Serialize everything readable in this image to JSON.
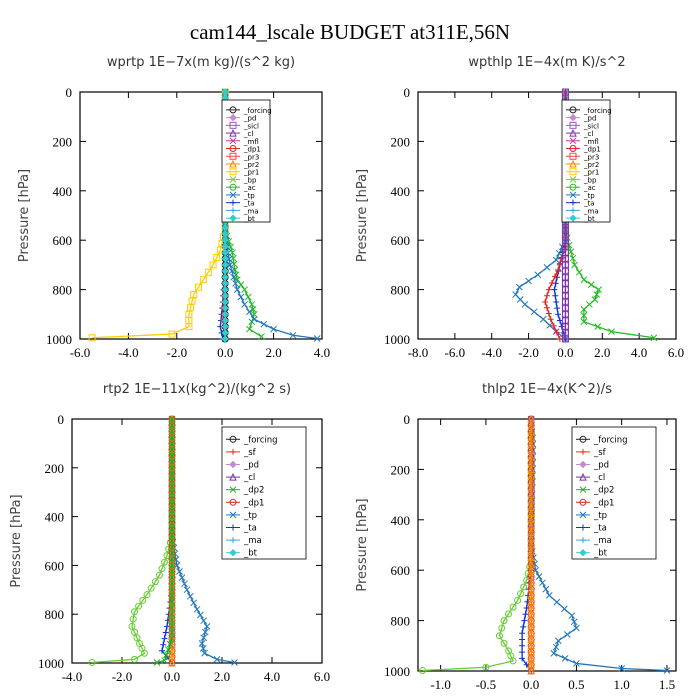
{
  "title": "cam144_lscale  BUDGET at311E,56N",
  "chart_data": [
    {
      "type": "line",
      "id": "wprtp",
      "title": "wprtp   1E−7x(m kg)/(s^2 kg)",
      "ylabel": "Pressure  [hPa]",
      "xlim": [
        -6,
        4
      ],
      "ylim": [
        1000,
        0
      ],
      "xticks": [
        "-6.0",
        "-4.0",
        "-2.0",
        "0.0",
        "2.0",
        "4.0"
      ],
      "xtick_values": [
        -6,
        -4,
        -2,
        0,
        2,
        4
      ],
      "yticks": [
        "0",
        "200",
        "400",
        "600",
        "800",
        "1000"
      ],
      "ytick_values": [
        0,
        200,
        400,
        600,
        800,
        1000
      ],
      "legend": [
        "_forcing",
        "_pd",
        "_sicl",
        "_cl",
        "_mfl",
        "_dp1",
        "_pr3",
        "_pr2",
        "_pr1",
        "_bp",
        "_ac",
        "_tp",
        "_ta",
        "_ma",
        "_bt"
      ],
      "series": [
        {
          "name": "_forcing",
          "color": "#000000",
          "marker": "circle",
          "points": [
            [
              0,
              0
            ],
            [
              0,
              1000
            ]
          ]
        },
        {
          "name": "_pr1",
          "color": "#ffcc00",
          "marker": "square",
          "points": [
            [
              0,
              0
            ],
            [
              0,
              560
            ],
            [
              -0.2,
              640
            ],
            [
              -0.5,
              700
            ],
            [
              -0.9,
              760
            ],
            [
              -1.3,
              820
            ],
            [
              -1.5,
              900
            ],
            [
              -1.5,
              950
            ],
            [
              -2.2,
              980
            ],
            [
              -5.5,
              995
            ]
          ]
        },
        {
          "name": "_ac",
          "color": "#22bb22",
          "marker": "x",
          "points": [
            [
              0,
              0
            ],
            [
              0,
              560
            ],
            [
              0.3,
              650
            ],
            [
              0.4,
              720
            ],
            [
              0.5,
              760
            ],
            [
              0.8,
              800
            ],
            [
              1.1,
              860
            ],
            [
              1.2,
              900
            ],
            [
              1.0,
              960
            ],
            [
              1.5,
              990
            ]
          ]
        },
        {
          "name": "_tp",
          "color": "#2277bb",
          "marker": "x",
          "points": [
            [
              0,
              0
            ],
            [
              0,
              580
            ],
            [
              0.2,
              700
            ],
            [
              0.5,
              800
            ],
            [
              0.8,
              860
            ],
            [
              1.2,
              920
            ],
            [
              2.0,
              960
            ],
            [
              2.8,
              985
            ],
            [
              3.8,
              998
            ]
          ]
        },
        {
          "name": "_ta",
          "color": "#1133cc",
          "marker": "plus",
          "points": [
            [
              0,
              0
            ],
            [
              0,
              700
            ],
            [
              -0.1,
              850
            ],
            [
              -0.2,
              950
            ],
            [
              -0.1,
              1000
            ]
          ]
        },
        {
          "name": "_dp1",
          "color": "#dd2222",
          "marker": "plus",
          "points": [
            [
              0,
              0
            ],
            [
              0,
              700
            ],
            [
              -0.1,
              900
            ],
            [
              0,
              1000
            ]
          ]
        },
        {
          "name": "_bt",
          "color": "#33cccc",
          "marker": "diamond",
          "points": [
            [
              0,
              0
            ],
            [
              0,
              1000
            ]
          ]
        }
      ]
    },
    {
      "type": "line",
      "id": "wpthlp",
      "title": "wpthlp   1E−4x(m K)/s^2",
      "ylabel": "Pressure  [hPa]",
      "xlim": [
        -8,
        6
      ],
      "ylim": [
        1000,
        0
      ],
      "xticks": [
        "-8.0",
        "-6.0",
        "-4.0",
        "-2.0",
        "0.0",
        "2.0",
        "4.0",
        "6.0"
      ],
      "xtick_values": [
        -8,
        -6,
        -4,
        -2,
        0,
        2,
        4,
        6
      ],
      "yticks": [
        "0",
        "200",
        "400",
        "600",
        "800",
        "1000"
      ],
      "ytick_values": [
        0,
        200,
        400,
        600,
        800,
        1000
      ],
      "legend": [
        "_forcing",
        "_pd",
        "_sicl",
        "_cl",
        "_mfl",
        "_dp1",
        "_pr3",
        "_pr2",
        "_pr1",
        "_bp",
        "_ac",
        "_tp",
        "_ta",
        "_ma",
        "_bt"
      ],
      "series": [
        {
          "name": "_ac",
          "color": "#22bb22",
          "marker": "x",
          "points": [
            [
              0,
              0
            ],
            [
              0,
              560
            ],
            [
              0.2,
              620
            ],
            [
              0.5,
              700
            ],
            [
              1.0,
              760
            ],
            [
              1.8,
              800
            ],
            [
              1.6,
              840
            ],
            [
              1.0,
              880
            ],
            [
              1.0,
              930
            ],
            [
              2.5,
              970
            ],
            [
              4.8,
              995
            ]
          ]
        },
        {
          "name": "_tp",
          "color": "#2277bb",
          "marker": "x",
          "points": [
            [
              0,
              0
            ],
            [
              0,
              600
            ],
            [
              -0.5,
              680
            ],
            [
              -1.5,
              740
            ],
            [
              -2.5,
              790
            ],
            [
              -2.7,
              820
            ],
            [
              -2.2,
              860
            ],
            [
              -1.2,
              920
            ],
            [
              -0.5,
              970
            ],
            [
              0,
              1000
            ]
          ]
        },
        {
          "name": "_ta",
          "color": "#1133cc",
          "marker": "plus",
          "points": [
            [
              0,
              0
            ],
            [
              0,
              600
            ],
            [
              -0.3,
              700
            ],
            [
              -0.6,
              800
            ],
            [
              -0.4,
              900
            ],
            [
              0,
              1000
            ]
          ]
        },
        {
          "name": "_dp1",
          "color": "#dd2222",
          "marker": "plus",
          "points": [
            [
              0,
              0
            ],
            [
              0,
              620
            ],
            [
              -0.4,
              720
            ],
            [
              -0.9,
              800
            ],
            [
              -1.1,
              850
            ],
            [
              -0.8,
              920
            ],
            [
              -0.3,
              1000
            ]
          ]
        },
        {
          "name": "_forcing",
          "color": "#cc88cc",
          "marker": "circle",
          "points": [
            [
              0,
              0
            ],
            [
              0,
              1000
            ]
          ]
        },
        {
          "name": "_cl",
          "color": "#7733aa",
          "marker": "square",
          "points": [
            [
              0,
              0
            ],
            [
              0,
              1000
            ]
          ]
        }
      ]
    },
    {
      "type": "line",
      "id": "rtp2",
      "title": "rtp2   1E−11x(kg^2)/(kg^2 s)",
      "ylabel": "Pressure  [hPa]",
      "xlim": [
        -4,
        6
      ],
      "ylim": [
        1000,
        0
      ],
      "xticks": [
        "-4.0",
        "-2.0",
        "0.0",
        "2.0",
        "4.0",
        "6.0"
      ],
      "xtick_values": [
        -4,
        -2,
        0,
        2,
        4,
        6
      ],
      "yticks": [
        "0",
        "200",
        "400",
        "600",
        "800",
        "1000"
      ],
      "ytick_values": [
        0,
        200,
        400,
        600,
        800,
        1000
      ],
      "legend": [
        "_forcing",
        "_sf",
        "_pd",
        "_cl",
        "_dp2",
        "_dp1",
        "_tp",
        "_ta",
        "_ma",
        "_bt"
      ],
      "series": [
        {
          "name": "_dp1",
          "color": "#66cc33",
          "marker": "circle",
          "points": [
            [
              0,
              0
            ],
            [
              0,
              480
            ],
            [
              -0.2,
              560
            ],
            [
              -0.5,
              640
            ],
            [
              -1.0,
              720
            ],
            [
              -1.5,
              790
            ],
            [
              -1.6,
              850
            ],
            [
              -1.3,
              920
            ],
            [
              -1.1,
              960
            ],
            [
              -1.5,
              985
            ],
            [
              -3.2,
              998
            ]
          ]
        },
        {
          "name": "_tp",
          "color": "#2277bb",
          "marker": "x",
          "points": [
            [
              0,
              0
            ],
            [
              0,
              480
            ],
            [
              0.2,
              600
            ],
            [
              0.6,
              700
            ],
            [
              1.0,
              780
            ],
            [
              1.4,
              850
            ],
            [
              1.2,
              920
            ],
            [
              1.3,
              960
            ],
            [
              1.8,
              985
            ],
            [
              2.5,
              998
            ]
          ]
        },
        {
          "name": "_ta",
          "color": "#1133cc",
          "marker": "plus",
          "points": [
            [
              0,
              0
            ],
            [
              0,
              700
            ],
            [
              -0.2,
              850
            ],
            [
              -0.4,
              950
            ],
            [
              0,
              1000
            ]
          ]
        },
        {
          "name": "_forcing",
          "color": "#dd3322",
          "marker": "circle",
          "points": [
            [
              0,
              0
            ],
            [
              0,
              1000
            ]
          ]
        },
        {
          "name": "_pd",
          "color": "#ff8800",
          "marker": "triangle",
          "points": [
            [
              0,
              0
            ],
            [
              0,
              1000
            ]
          ]
        },
        {
          "name": "_dp2",
          "color": "#22aa22",
          "marker": "x",
          "points": [
            [
              0,
              0
            ],
            [
              0,
              900
            ],
            [
              -0.3,
              990
            ],
            [
              -0.6,
              998
            ]
          ]
        }
      ]
    },
    {
      "type": "line",
      "id": "thlp2",
      "title": "thlp2   1E−4x(K^2)/s",
      "ylabel": "Pressure  [hPa]",
      "xlim": [
        -1.25,
        1.6
      ],
      "ylim": [
        1000,
        0
      ],
      "xticks": [
        "-1.0",
        "-0.5",
        "0.0",
        "0.5",
        "1.0",
        "1.5"
      ],
      "xtick_values": [
        -1.0,
        -0.5,
        0.0,
        0.5,
        1.0,
        1.5
      ],
      "yticks": [
        "0",
        "200",
        "400",
        "600",
        "800",
        "1000"
      ],
      "ytick_values": [
        0,
        200,
        400,
        600,
        800,
        1000
      ],
      "legend": [
        "_forcing",
        "_sf",
        "_pd",
        "_cl",
        "_dp2",
        "_dp1",
        "_tp",
        "_ta",
        "_ma",
        "_bt"
      ],
      "series": [
        {
          "name": "_dp1",
          "color": "#66cc33",
          "marker": "circle",
          "points": [
            [
              0,
              0
            ],
            [
              0,
              560
            ],
            [
              -0.05,
              640
            ],
            [
              -0.15,
              720
            ],
            [
              -0.3,
              800
            ],
            [
              -0.35,
              860
            ],
            [
              -0.25,
              920
            ],
            [
              -0.2,
              960
            ],
            [
              -0.5,
              985
            ],
            [
              -1.2,
              998
            ]
          ]
        },
        {
          "name": "_tp",
          "color": "#2277bb",
          "marker": "x",
          "points": [
            [
              0,
              0
            ],
            [
              0.02,
              100
            ],
            [
              0,
              500
            ],
            [
              0.05,
              600
            ],
            [
              0.2,
              700
            ],
            [
              0.45,
              780
            ],
            [
              0.5,
              830
            ],
            [
              0.3,
              880
            ],
            [
              0.25,
              930
            ],
            [
              0.5,
              970
            ],
            [
              1.0,
              990
            ],
            [
              1.5,
              998
            ]
          ]
        },
        {
          "name": "_ta",
          "color": "#1133cc",
          "marker": "plus",
          "points": [
            [
              0,
              0
            ],
            [
              0,
              600
            ],
            [
              -0.05,
              750
            ],
            [
              -0.1,
              850
            ],
            [
              -0.1,
              950
            ],
            [
              0,
              1000
            ]
          ]
        },
        {
          "name": "_forcing",
          "color": "#dd3322",
          "marker": "circle",
          "points": [
            [
              0,
              0
            ],
            [
              0,
              1000
            ]
          ]
        },
        {
          "name": "_pd",
          "color": "#ff8800",
          "marker": "triangle",
          "points": [
            [
              0,
              0
            ],
            [
              0,
              1000
            ]
          ]
        }
      ]
    }
  ]
}
